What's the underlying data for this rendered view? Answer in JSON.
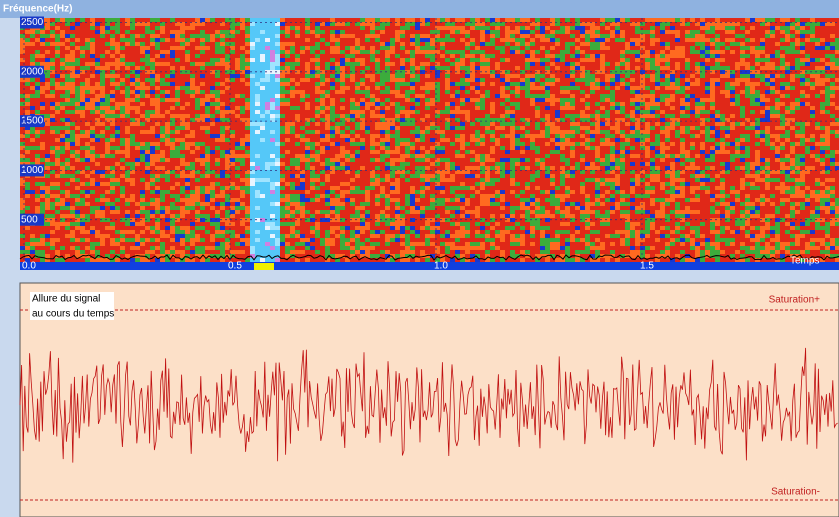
{
  "spectrogram": {
    "title": "Fréquence(Hz)",
    "yticks": [
      500,
      1000,
      1500,
      2000,
      2500
    ],
    "xlabel": "Temps",
    "xticks": [
      {
        "value": 0,
        "label": "0.0"
      },
      {
        "value": 0.5,
        "label": "0.5"
      },
      {
        "value": 1,
        "label": "1.0"
      },
      {
        "value": 1.5,
        "label": "1.5"
      }
    ]
  },
  "waveform": {
    "title_lines": [
      "Allure du signal",
      "au cours du temps"
    ],
    "saturation_high": "Saturation+",
    "saturation_low": "Saturation-"
  }
}
